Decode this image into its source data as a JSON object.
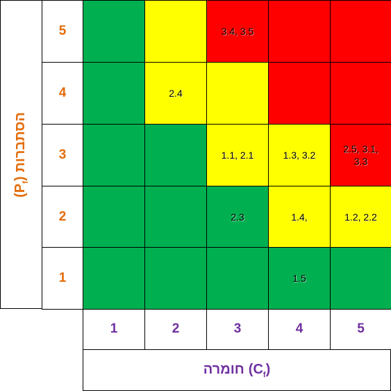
{
  "y_axis": {
    "label": "הסתברות",
    "symbol": "(P",
    "subscript": "f",
    "close": ")"
  },
  "x_axis": {
    "label": "חומרה",
    "symbol": "(C",
    "subscript": "f",
    "close": ")"
  },
  "row_labels": [
    "5",
    "4",
    "3",
    "2",
    "1"
  ],
  "column_labels": [
    "1",
    "2",
    "3",
    "4",
    "5"
  ],
  "rows": [
    [
      {
        "color": "#00b050"
      },
      {
        "color": "#ffff00"
      },
      {
        "color": "#ff0000",
        "text": "3.4, 3.5"
      },
      {
        "color": "#ff0000"
      },
      {
        "color": "#ff0000"
      }
    ],
    [
      {
        "color": "#00b050"
      },
      {
        "color": "#ffff00",
        "text": "2.4"
      },
      {
        "color": "#ffff00"
      },
      {
        "color": "#ff0000"
      },
      {
        "color": "#ff0000"
      }
    ],
    [
      {
        "color": "#00b050"
      },
      {
        "color": "#00b050"
      },
      {
        "color": "#ffff00",
        "text": "1.1, 2.1"
      },
      {
        "color": "#ffff00",
        "text": "1.3, 3.2"
      },
      {
        "color": "#ff0000",
        "text": "2.5, 3.1, 3.3"
      }
    ],
    [
      {
        "color": "#00b050"
      },
      {
        "color": "#00b050"
      },
      {
        "color": "#00b050",
        "text": "2.3"
      },
      {
        "color": "#ffff00",
        "text": "1.4,"
      },
      {
        "color": "#ffff00",
        "text": "1.2, 2.2"
      }
    ],
    [
      {
        "color": "#00b050"
      },
      {
        "color": "#00b050"
      },
      {
        "color": "#00b050"
      },
      {
        "color": "#00b050",
        "text": "1.5"
      },
      {
        "color": "#00b050"
      }
    ]
  ]
}
